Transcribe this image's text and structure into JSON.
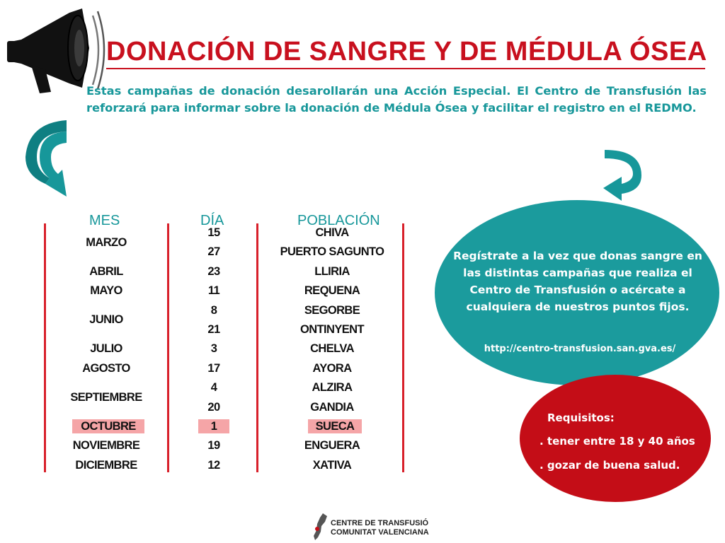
{
  "title": "DONACIÓN DE SANGRE Y DE MÉDULA ÓSEA",
  "intro": "Estas campañas de donación desarollarán una Acción Especial. El Centro de Transfusión las reforzará para informar sobre la donación de Médula Ósea y facilitar el registro en el REDMO.",
  "table": {
    "headers": {
      "mes": "MES",
      "dia": "DÍA",
      "poblacion": "POBLACIÓN"
    },
    "months": [
      {
        "name": "MARZO",
        "rows": 2
      },
      {
        "name": "ABRIL",
        "rows": 1
      },
      {
        "name": "MAYO",
        "rows": 1
      },
      {
        "name": "JUNIO",
        "rows": 2
      },
      {
        "name": "JULIO",
        "rows": 1
      },
      {
        "name": "AGOSTO",
        "rows": 1
      },
      {
        "name": "SEPTIEMBRE",
        "rows": 2
      },
      {
        "name": "OCTUBRE",
        "rows": 1,
        "highlight": true
      },
      {
        "name": "NOVIEMBRE",
        "rows": 1
      },
      {
        "name": "DICIEMBRE",
        "rows": 1
      }
    ],
    "rows": [
      {
        "dia": "15",
        "poblacion": "CHIVA"
      },
      {
        "dia": "27",
        "poblacion": "PUERTO SAGUNTO"
      },
      {
        "dia": "23",
        "poblacion": "LLIRIA"
      },
      {
        "dia": "11",
        "poblacion": "REQUENA"
      },
      {
        "dia": "8",
        "poblacion": "SEGORBE"
      },
      {
        "dia": "21",
        "poblacion": "ONTINYENT"
      },
      {
        "dia": "3",
        "poblacion": "CHELVA"
      },
      {
        "dia": "17",
        "poblacion": "AYORA"
      },
      {
        "dia": "4",
        "poblacion": "ALZIRA"
      },
      {
        "dia": "20",
        "poblacion": "GANDIA"
      },
      {
        "dia": "1",
        "poblacion": "SUECA",
        "highlight": true
      },
      {
        "dia": "19",
        "poblacion": "ENGUERA"
      },
      {
        "dia": "12",
        "poblacion": "XATIVA"
      }
    ]
  },
  "register": {
    "text": "Regístrate a la vez que donas sangre en las distintas campañas que realiza el Centro de Transfusión o acércate a cualquiera de nuestros puntos fijos.",
    "url": "http://centro-transfusion.san.gva.es/"
  },
  "requisitos": {
    "title": "Requisitos:",
    "items": [
      ". tener entre 18 y 40 años",
      ". gozar de buena salud."
    ]
  },
  "footer": {
    "line1": "CENTRE DE TRANSFUSIÓ",
    "line2": "COMUNITAT VALENCIANA"
  },
  "colors": {
    "red": "#c8101e",
    "teal": "#17979a",
    "highlight": "#f5a5a7"
  },
  "icons": [
    "megaphone-icon",
    "curved-arrow-left-icon",
    "curved-arrow-right-icon",
    "comunitat-valenciana-logo-icon"
  ]
}
